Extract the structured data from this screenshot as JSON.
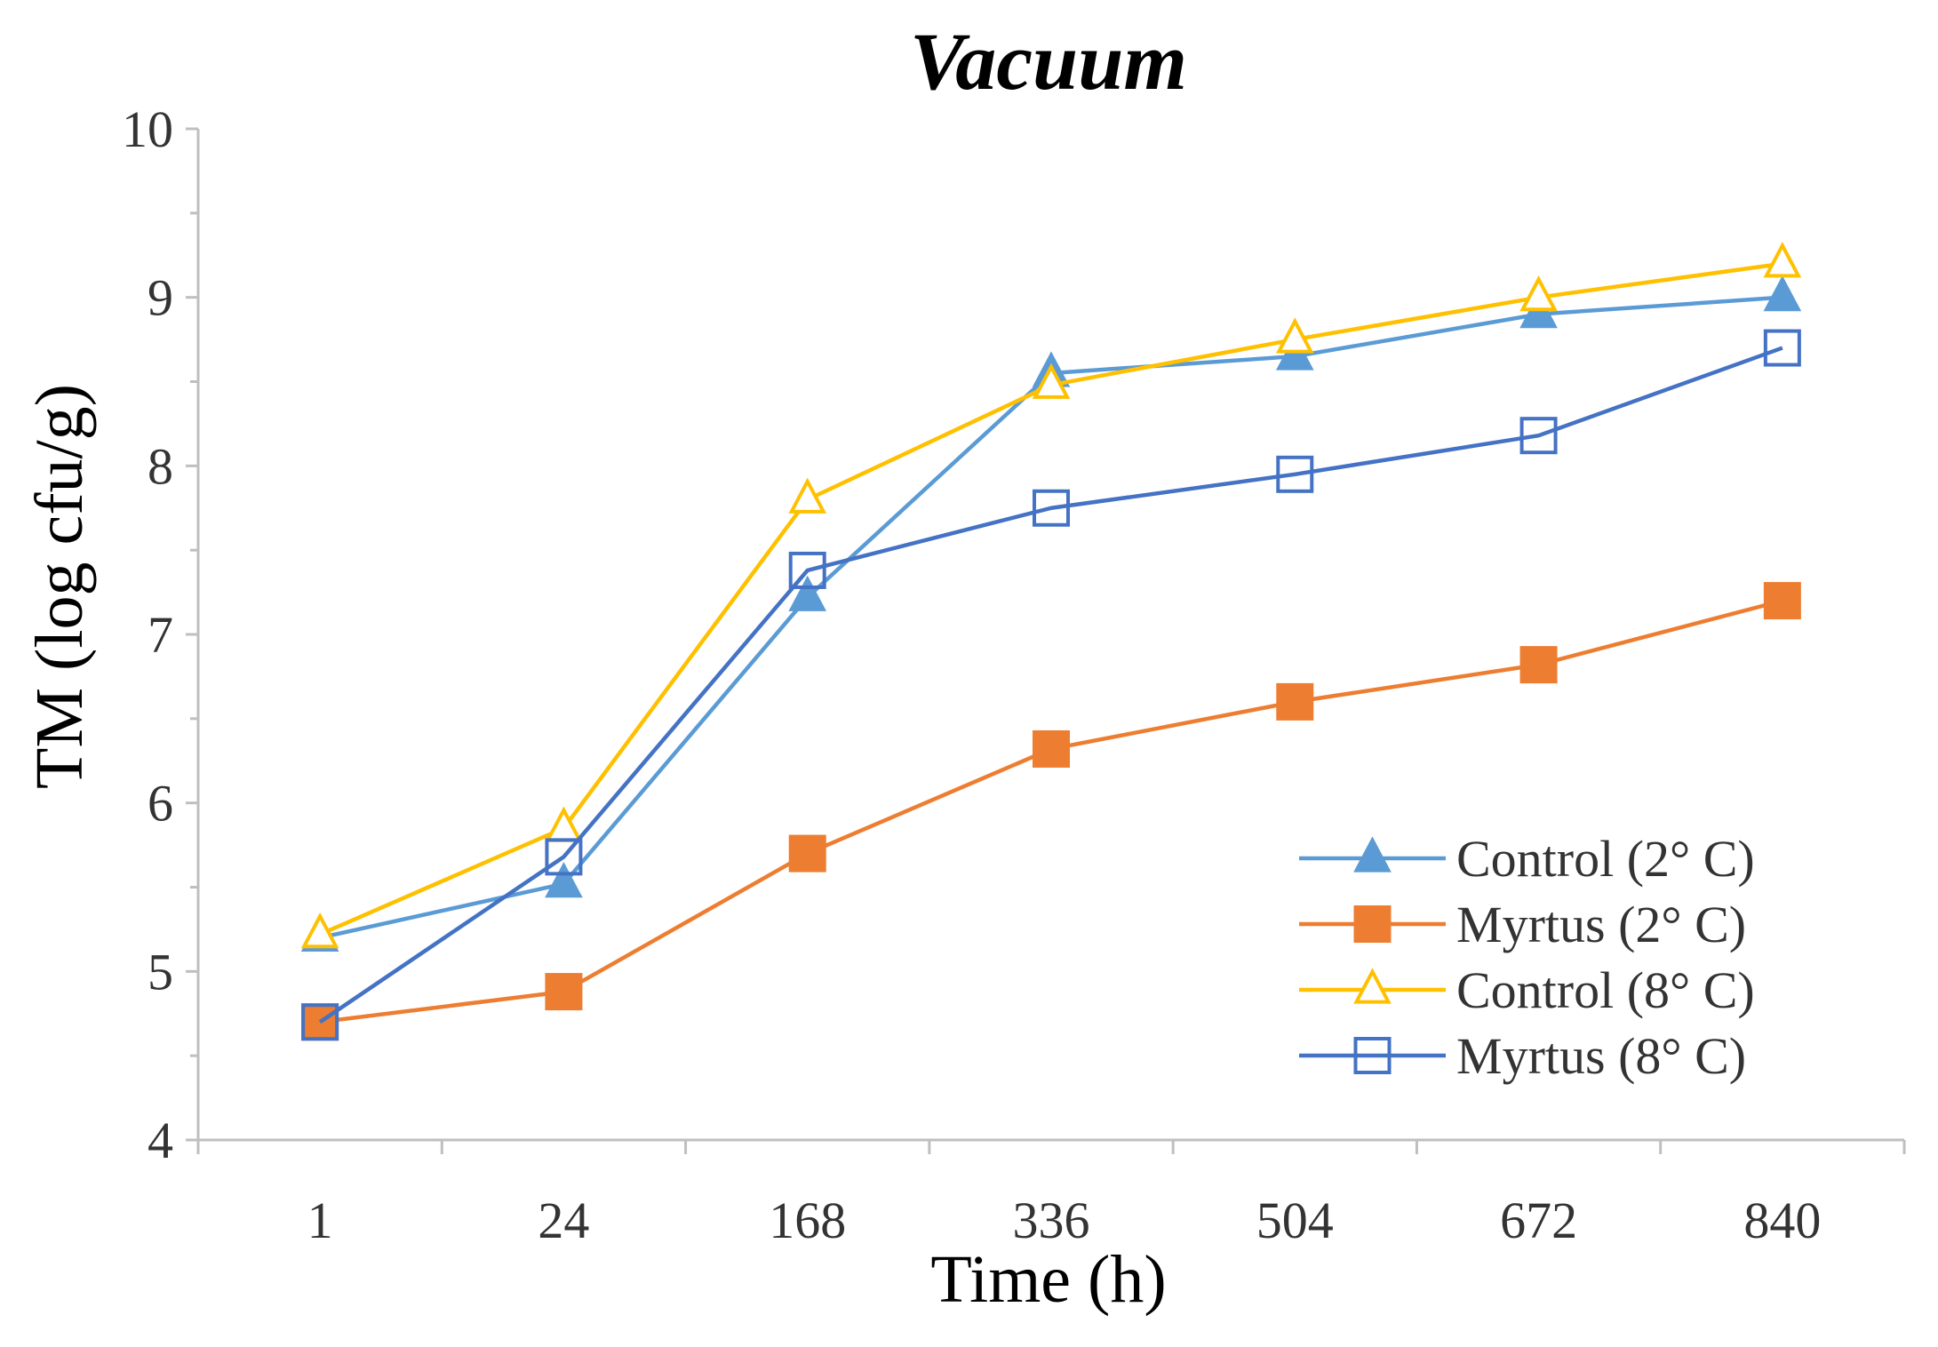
{
  "chart_data": {
    "type": "line",
    "title": "Vacuum",
    "xlabel": "Time (h)",
    "ylabel": "TM (log cfu/g)",
    "categories": [
      "1",
      "24",
      "168",
      "336",
      "504",
      "672",
      "840"
    ],
    "ylim": [
      4,
      10
    ],
    "yticks": [
      "4",
      "5",
      "6",
      "7",
      "8",
      "9",
      "10"
    ],
    "grid": false,
    "legend_position": "bottom-right",
    "series": [
      {
        "name": "Control (2° C)",
        "color": "#5B9BD5",
        "marker": "triangle-filled",
        "values": [
          5.2,
          5.52,
          7.22,
          8.55,
          8.65,
          8.9,
          9.0
        ]
      },
      {
        "name": "Myrtus (2° C)",
        "color": "#ED7D31",
        "marker": "square-filled",
        "values": [
          4.7,
          4.88,
          5.7,
          6.32,
          6.6,
          6.82,
          7.2
        ]
      },
      {
        "name": "Control (8° C)",
        "color": "#FFC000",
        "marker": "triangle-open",
        "values": [
          5.22,
          5.85,
          7.8,
          8.48,
          8.75,
          9.0,
          9.2
        ]
      },
      {
        "name": "Myrtus (8° C)",
        "color": "#4472C4",
        "marker": "square-open",
        "values": [
          4.7,
          5.68,
          7.38,
          7.75,
          7.95,
          8.18,
          8.7
        ]
      }
    ]
  }
}
